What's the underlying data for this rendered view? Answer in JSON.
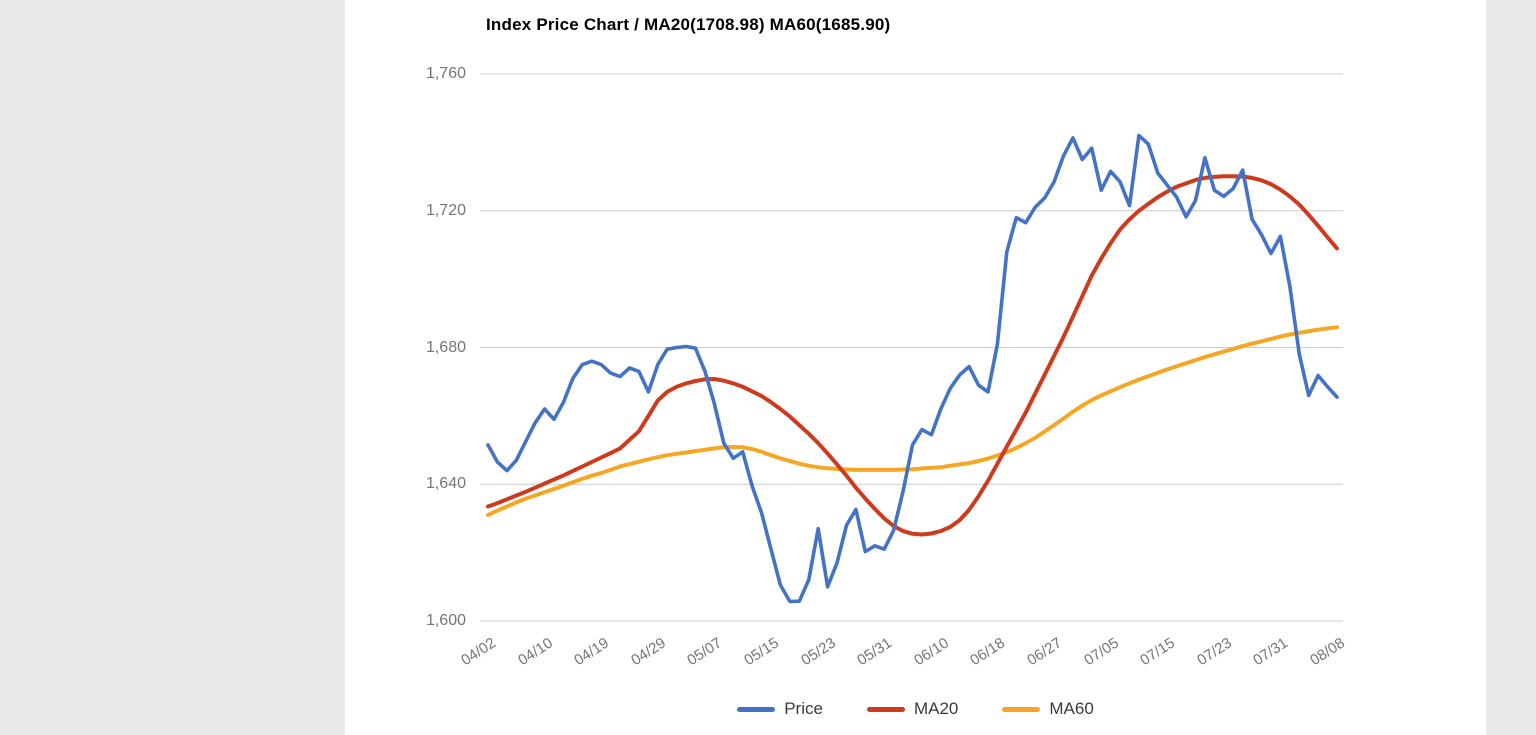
{
  "title": "Index Price Chart / MA20(1708.98) MA60(1685.90)",
  "colors": {
    "page_background": "#e8e8e8",
    "panel_background": "#ffffff",
    "gridline": "#cccccc",
    "axis_text": "#757575",
    "legend_text": "#3b3b3b",
    "title_text": "#000000",
    "price_line": "#4472C4",
    "ma20_line": "#CE3A1D",
    "ma60_line": "#F5A623"
  },
  "chart_data": {
    "type": "line",
    "title": "Index Price Chart / MA20(1708.98) MA60(1685.90)",
    "grid": true,
    "legend_position": "bottom-center",
    "ylim": [
      1600,
      1760
    ],
    "y_ticks": [
      {
        "value": 1760,
        "label": "1,760"
      },
      {
        "value": 1720,
        "label": "1,720"
      },
      {
        "value": 1680,
        "label": "1,680"
      },
      {
        "value": 1640,
        "label": "1,640"
      },
      {
        "value": 1600,
        "label": "1,600"
      }
    ],
    "x_ticks": [
      {
        "index": 0,
        "label": "04/02"
      },
      {
        "index": 6,
        "label": "04/10"
      },
      {
        "index": 12,
        "label": "04/19"
      },
      {
        "index": 18,
        "label": "04/29"
      },
      {
        "index": 24,
        "label": "05/07"
      },
      {
        "index": 30,
        "label": "05/15"
      },
      {
        "index": 36,
        "label": "05/23"
      },
      {
        "index": 42,
        "label": "05/31"
      },
      {
        "index": 48,
        "label": "06/10"
      },
      {
        "index": 54,
        "label": "06/18"
      },
      {
        "index": 60,
        "label": "06/27"
      },
      {
        "index": 66,
        "label": "07/05"
      },
      {
        "index": 72,
        "label": "07/15"
      },
      {
        "index": 78,
        "label": "07/23"
      },
      {
        "index": 84,
        "label": "07/31"
      },
      {
        "index": 90,
        "label": "08/08"
      }
    ],
    "series": [
      {
        "name": "Price",
        "color": "#4472C4",
        "stroke_width": 3.6,
        "values": [
          1651.5,
          1646.5,
          1644,
          1647,
          1652.5,
          1658,
          1662,
          1659,
          1664,
          1671,
          1675,
          1676,
          1675,
          1672.5,
          1671.5,
          1674,
          1673,
          1667,
          1675,
          1679.5,
          1680,
          1680.3,
          1679.8,
          1673,
          1663.5,
          1652,
          1647.6,
          1649.5,
          1639.5,
          1631.6,
          1621,
          1610.5,
          1605.7,
          1605.8,
          1612,
          1627,
          1610,
          1617,
          1628,
          1632.6,
          1620.3,
          1622,
          1621,
          1626.5,
          1638,
          1651.5,
          1656,
          1654.5,
          1662,
          1668,
          1672,
          1674.4,
          1669,
          1667,
          1681,
          1708,
          1718,
          1716.5,
          1721,
          1723.7,
          1728.4,
          1736,
          1741.3,
          1735,
          1738.3,
          1726,
          1731.5,
          1728.5,
          1721.5,
          1742,
          1739.5,
          1731,
          1727.5,
          1724,
          1718.2,
          1723,
          1735.5,
          1726,
          1724.2,
          1726.5,
          1731.9,
          1717.5,
          1713,
          1707.5,
          1712.5,
          1698,
          1678,
          1666,
          1671.8,
          1668.5,
          1665.5
        ]
      },
      {
        "name": "MA20",
        "color": "#CE3A1D",
        "stroke_width": 4,
        "values": [
          1633.5,
          1634.5,
          1635.6,
          1636.7,
          1637.8,
          1639,
          1640.2,
          1641.4,
          1642.6,
          1643.9,
          1645.2,
          1646.5,
          1647.8,
          1649.1,
          1650.5,
          1653,
          1655.5,
          1660,
          1664.5,
          1667,
          1668.5,
          1669.5,
          1670.2,
          1670.7,
          1670.8,
          1670.3,
          1669.5,
          1668.5,
          1667.2,
          1665.8,
          1664,
          1662,
          1659.8,
          1657.3,
          1654.8,
          1652,
          1649,
          1645.8,
          1642.5,
          1639,
          1635.8,
          1632.8,
          1630,
          1627.8,
          1626.3,
          1625.5,
          1625.3,
          1625.6,
          1626.3,
          1627.5,
          1629.5,
          1632.5,
          1636.5,
          1641,
          1646,
          1651,
          1656,
          1661,
          1666.5,
          1672,
          1677.5,
          1683,
          1689,
          1695,
          1701,
          1706,
          1710.5,
          1714.5,
          1717.5,
          1720,
          1722,
          1724,
          1725.6,
          1727,
          1728,
          1729,
          1729.6,
          1729.9,
          1730.1,
          1730.1,
          1730,
          1729.6,
          1728.9,
          1727.8,
          1726.2,
          1724.2,
          1721.8,
          1718.8,
          1715.6,
          1712.2,
          1708.98
        ]
      },
      {
        "name": "MA60",
        "color": "#F5A623",
        "stroke_width": 4,
        "values": [
          1631,
          1632.3,
          1633.5,
          1634.7,
          1635.8,
          1636.7,
          1637.7,
          1638.6,
          1639.6,
          1640.6,
          1641.6,
          1642.5,
          1643.3,
          1644.2,
          1645.2,
          1645.9,
          1646.6,
          1647.3,
          1647.9,
          1648.5,
          1648.9,
          1649.3,
          1649.7,
          1650.1,
          1650.5,
          1650.8,
          1650.9,
          1650.8,
          1650.3,
          1649.5,
          1648.5,
          1647.6,
          1646.8,
          1646,
          1645.4,
          1645,
          1644.7,
          1644.5,
          1644.3,
          1644.2,
          1644.2,
          1644.2,
          1644.2,
          1644.2,
          1644.3,
          1644.4,
          1644.6,
          1644.8,
          1645,
          1645.4,
          1645.8,
          1646.2,
          1646.8,
          1647.5,
          1648.4,
          1649.4,
          1650.6,
          1652,
          1653.6,
          1655.4,
          1657.3,
          1659.2,
          1661.2,
          1663,
          1664.6,
          1666,
          1667.2,
          1668.4,
          1669.5,
          1670.6,
          1671.6,
          1672.6,
          1673.6,
          1674.5,
          1675.4,
          1676.3,
          1677.2,
          1678,
          1678.8,
          1679.6,
          1680.4,
          1681.1,
          1681.8,
          1682.5,
          1683.2,
          1683.8,
          1684.3,
          1684.8,
          1685.2,
          1685.6,
          1685.9
        ]
      }
    ]
  }
}
